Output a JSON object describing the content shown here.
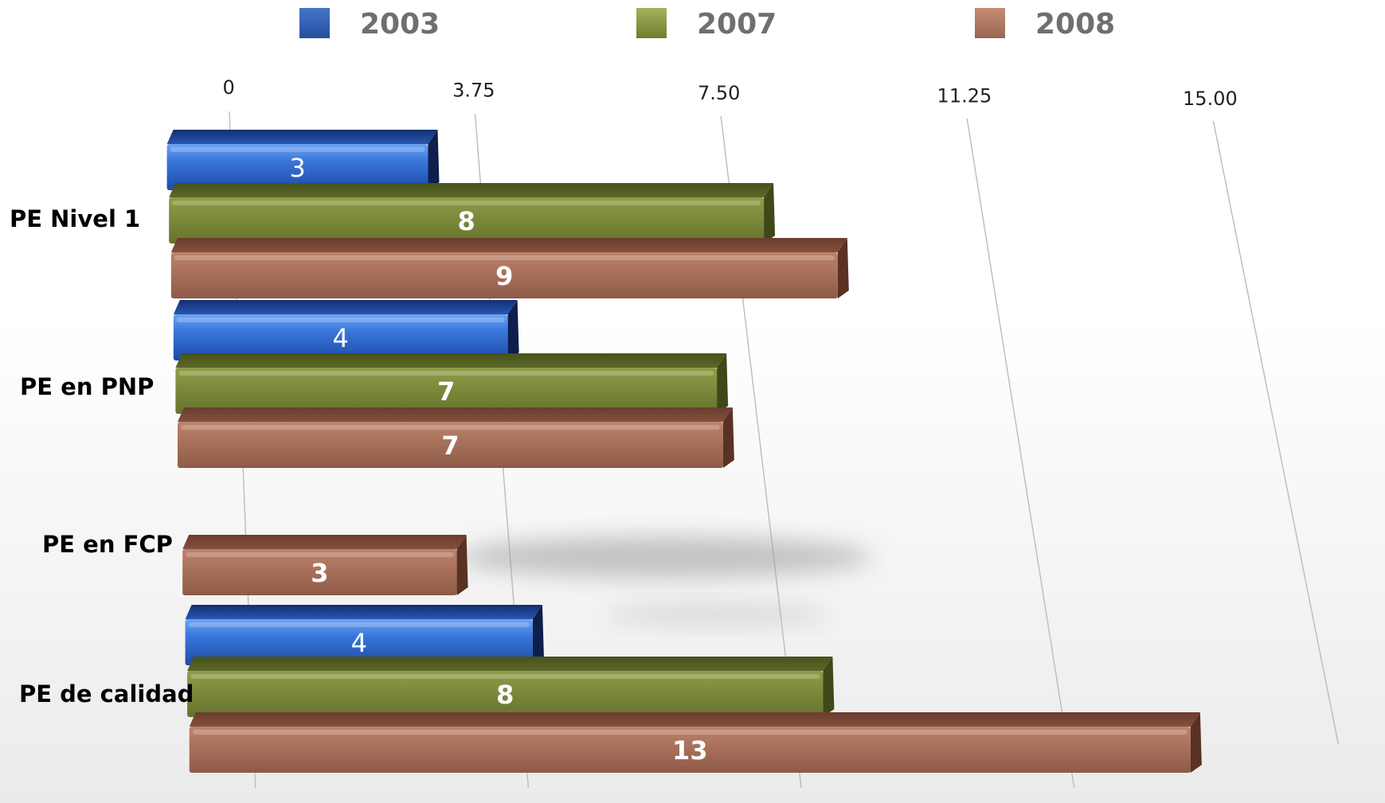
{
  "chart_data": {
    "type": "bar",
    "orientation": "horizontal",
    "categories": [
      "PE Nivel 1",
      "PE en PNP",
      "PE en FCP",
      "PE de calidad"
    ],
    "series": [
      {
        "name": "2003",
        "values": [
          3,
          4,
          null,
          4
        ],
        "color": "#2e64c8"
      },
      {
        "name": "2007",
        "values": [
          8,
          7,
          null,
          8
        ],
        "color": "#7d8c3a"
      },
      {
        "name": "2008",
        "values": [
          9,
          7,
          3,
          13
        ],
        "color": "#a16a55"
      }
    ],
    "xticks": [
      "0",
      "3.75",
      "7.50",
      "11.25",
      "15.00"
    ],
    "xlim": [
      0,
      15
    ],
    "legend_position": "top",
    "grid": true
  }
}
